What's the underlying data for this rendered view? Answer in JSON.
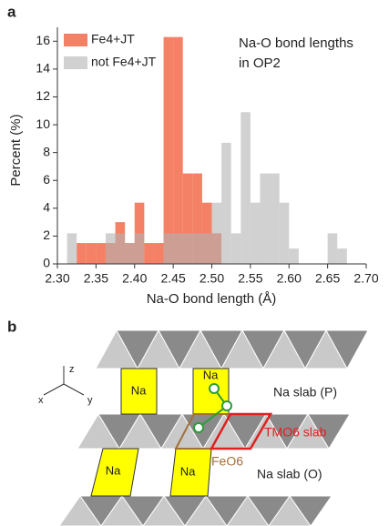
{
  "chart_data": {
    "type": "histogram",
    "xlabel": "Na-O bond length (Å)",
    "ylabel": "Percent (%)",
    "annotation": [
      "Na-O bond lengths",
      "in OP2"
    ],
    "bins": [
      2.3125,
      2.325,
      2.3375,
      2.35,
      2.3625,
      2.375,
      2.3875,
      2.4,
      2.4125,
      2.425,
      2.4375,
      2.45,
      2.4625,
      2.475,
      2.4875,
      2.5,
      2.5125,
      2.525,
      2.5375,
      2.55,
      2.5625,
      2.575,
      2.5875,
      2.6,
      2.6125,
      2.625,
      2.6375,
      2.65,
      2.6625,
      2.675
    ],
    "series": [
      {
        "name": "Fe4+JT",
        "color": "#f26b4a",
        "values": [
          0,
          1.5,
          1.5,
          1.5,
          1.5,
          3,
          1.5,
          4.4,
          1.5,
          1.5,
          16.3,
          16.3,
          6.5,
          6.5,
          4.4,
          2.2,
          0,
          0,
          0,
          0,
          0,
          0,
          0,
          0,
          0,
          0,
          0,
          0,
          0
        ]
      },
      {
        "name": "not Fe4+JT",
        "color": "#b3b3b3",
        "values": [
          2.2,
          0,
          0,
          0,
          2.2,
          2.2,
          1.5,
          2.2,
          0,
          0,
          2.2,
          2.2,
          2.2,
          2.2,
          2.2,
          4.4,
          8.7,
          2.2,
          10.9,
          4.4,
          6.5,
          6.5,
          4.4,
          1.1,
          0,
          0,
          0,
          2.2,
          1.1
        ]
      }
    ],
    "xlim": [
      2.3,
      2.7
    ],
    "ylim": [
      0,
      17
    ],
    "xticks": [
      {
        "value": 2.3,
        "label": "2.30"
      },
      2.35,
      {
        "value": 2.4,
        "label": "2.40"
      },
      2.45,
      {
        "value": 2.5,
        "label": "2.50"
      },
      2.55,
      {
        "value": 2.6,
        "label": "2.60"
      },
      2.65,
      {
        "value": 2.7,
        "label": "2.70"
      }
    ],
    "yticks": [
      0,
      2,
      4,
      6,
      8,
      10,
      12,
      14,
      16
    ],
    "legend": "upper left"
  },
  "panel_labels": [
    "a",
    "b"
  ],
  "diagram": {
    "sites": [
      "Na",
      "Na",
      "Na",
      "Na"
    ],
    "axes": [
      "z",
      "x",
      "y"
    ],
    "layers": [
      "Na slab (P)",
      "TMO6 slab",
      "Na slab (O)"
    ],
    "octahedron": "FeO6"
  }
}
